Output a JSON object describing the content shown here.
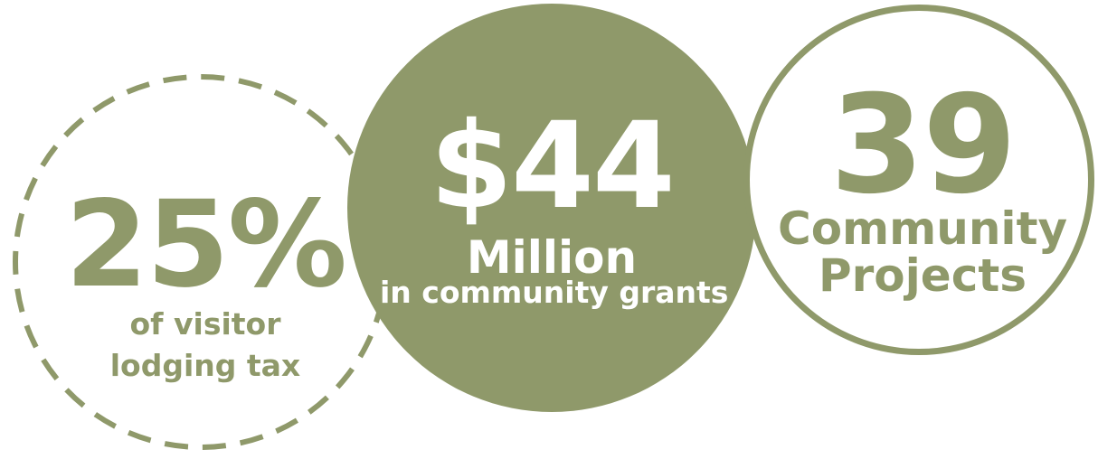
{
  "stats": [
    {
      "value": "25%",
      "line1": "of visitor",
      "line2": "lodging tax"
    },
    {
      "value": "$44",
      "line1": "Million",
      "line2": "in community grants"
    },
    {
      "value": "39",
      "line1": "Community",
      "line2": "Projects"
    }
  ],
  "colors": {
    "accent": "#8f996a",
    "background": "#ffffff",
    "inverse_text": "#ffffff"
  }
}
